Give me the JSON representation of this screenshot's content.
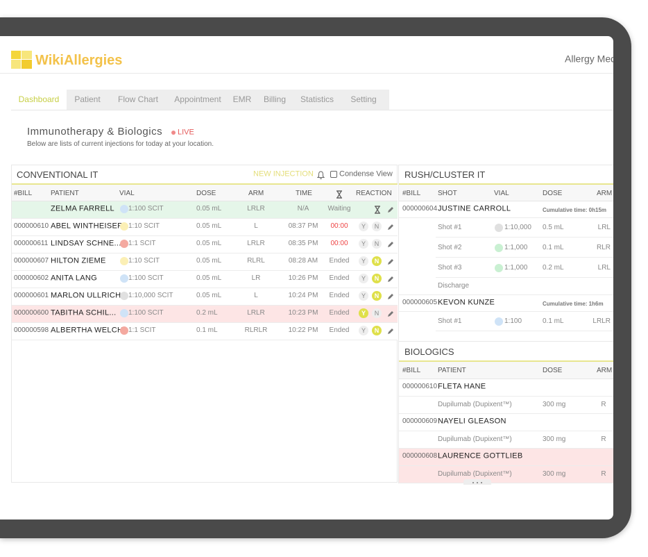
{
  "header": {
    "logo": "WikiAllergies",
    "user": "Allergy Med"
  },
  "tabs": [
    "Dashboard",
    "Patient",
    "Flow Chart",
    "Appointment",
    "EMR",
    "Billing",
    "Statistics",
    "Setting"
  ],
  "active_tab": 0,
  "page": {
    "title": "Immunotherapy & Biologics",
    "live": "LIVE",
    "subtitle": "Below are lists of current injections for today at your location."
  },
  "reaction_options": [
    "Y",
    "N"
  ],
  "conventional": {
    "title": "CONVENTIONAL IT",
    "new_injection": "NEW INJECTION",
    "condense_view": "Condense View",
    "columns": [
      "#BILL",
      "PATIENT",
      "VIAL",
      "DOSE",
      "ARM",
      "TIME",
      "REACTION"
    ],
    "rows": [
      {
        "patient": "ZELMA FARRELL",
        "vial": "1:100 SCIT",
        "vial_color": "#cfe3f7",
        "dose": "0.05 mL",
        "arm": "LRLR",
        "time": "N/A",
        "status": "Waiting",
        "pending": true,
        "highlight": "#e5f6e9"
      },
      {
        "bill": "000000610",
        "patient": "ABEL WINTHEISER",
        "vial": "1:10 SCIT",
        "vial_color": "#fbefb5",
        "dose": "0.05 mL",
        "arm": "L",
        "time": "08:37 PM",
        "status": "00:00",
        "status_alert": true
      },
      {
        "bill": "000000611",
        "patient": "LINDSAY SCHNE...",
        "vial": "1:1 SCIT",
        "vial_color": "#f4a9a0",
        "dose": "0.05 mL",
        "arm": "LRLR",
        "time": "08:35 PM",
        "status": "00:00",
        "status_alert": true
      },
      {
        "bill": "000000607",
        "patient": "HILTON ZIEME",
        "vial": "1:10 SCIT",
        "vial_color": "#fbefb5",
        "dose": "0.05 mL",
        "arm": "RLRL",
        "time": "08:28 AM",
        "status": "Ended",
        "reacted": "N"
      },
      {
        "bill": "000000602",
        "patient": "ANITA LANG",
        "vial": "1:100 SCIT",
        "vial_color": "#cfe3f7",
        "dose": "0.05 mL",
        "arm": "LR",
        "time": "10:26 PM",
        "status": "Ended",
        "reacted": "N"
      },
      {
        "bill": "000000601",
        "patient": "MARLON ULLRICH",
        "vial": "1:10,000 SCIT",
        "vial_color": "#e0e0e0",
        "dose": "0.05 mL",
        "arm": "L",
        "time": "10:24 PM",
        "status": "Ended",
        "reacted": "N"
      },
      {
        "bill": "000000600",
        "patient": "TABITHA SCHIL...",
        "vial": "1:100 SCIT",
        "vial_color": "#cfe3f7",
        "dose": "0.2 mL",
        "arm": "LRLR",
        "time": "10:23 PM",
        "status": "Ended",
        "reacted": "Y",
        "highlight": "#fde5e5"
      },
      {
        "bill": "000000598",
        "patient": "ALBERTHA WELCH",
        "vial": "1:1 SCIT",
        "vial_color": "#f4a9a0",
        "dose": "0.1 mL",
        "arm": "RLRLR",
        "time": "10:22 PM",
        "status": "Ended",
        "reacted": "N"
      }
    ]
  },
  "rush": {
    "title": "RUSH/CLUSTER IT",
    "columns": [
      "#BILL",
      "SHOT",
      "VIAL",
      "DOSE",
      "ARM"
    ],
    "patients": [
      {
        "bill": "000000604",
        "patient": "JUSTINE CARROLL",
        "cumulative": "Cumulative time: 0h15m",
        "shots": [
          {
            "shot": "Shot #1",
            "vial": "1:10,000",
            "vial_color": "#e0e0e0",
            "dose": "0.5 mL",
            "arm": "LRL"
          },
          {
            "shot": "Shot #2",
            "vial": "1:1,000",
            "vial_color": "#c9f0d2",
            "dose": "0.1 mL",
            "arm": "RLR"
          },
          {
            "shot": "Shot #3",
            "vial": "1:1,000",
            "vial_color": "#c9f0d2",
            "dose": "0.2 mL",
            "arm": "LRL"
          }
        ],
        "discharge": "Discharge"
      },
      {
        "bill": "000000605",
        "patient": "KEVON KUNZE",
        "cumulative": "Cumulative time: 1h6m",
        "shots": [
          {
            "shot": "Shot #1",
            "vial": "1:100",
            "vial_color": "#cfe3f7",
            "dose": "0.1 mL",
            "arm": "LRLR"
          }
        ]
      }
    ]
  },
  "biologics": {
    "title": "BIOLOGICS",
    "columns": [
      "#BILL",
      "PATIENT",
      "DOSE",
      "ARM"
    ],
    "rows": [
      {
        "bill": "000000610",
        "patient": "FLETA HANE",
        "drug": "Dupilumab (Dupixent™)",
        "dose": "300 mg",
        "arm": "R"
      },
      {
        "bill": "000000609",
        "patient": "NAYELI GLEASON",
        "drug": "Dupilumab (Dupixent™)",
        "dose": "300 mg",
        "arm": "R"
      },
      {
        "bill": "000000608",
        "patient": "LAURENCE GOTTLIEB",
        "drug": "Dupilumab (Dupixent™)",
        "dose": "300 mg",
        "arm": "R",
        "highlight": "#fde5e5"
      }
    ]
  }
}
